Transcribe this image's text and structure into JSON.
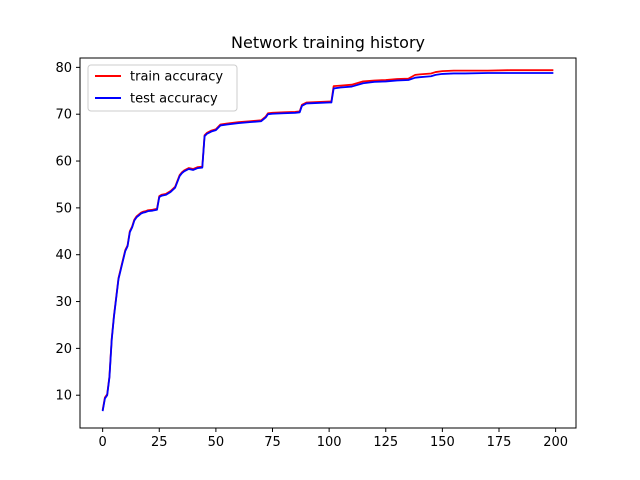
{
  "chart_data": {
    "type": "line",
    "title": "Network training history",
    "xlabel": "",
    "ylabel": "",
    "xlim": [
      -10,
      209
    ],
    "ylim": [
      3,
      82
    ],
    "xticks": [
      0,
      25,
      50,
      75,
      100,
      125,
      150,
      175,
      200
    ],
    "yticks": [
      10,
      20,
      30,
      40,
      50,
      60,
      70,
      80
    ],
    "grid": false,
    "legend_position": "top-left",
    "series": [
      {
        "name": "train accuracy",
        "color": "#ff0000",
        "x": [
          0,
          1,
          2,
          3,
          4,
          5,
          6,
          7,
          8,
          9,
          10,
          11,
          12,
          13,
          14,
          15,
          16,
          17,
          18,
          19,
          20,
          22,
          24,
          25,
          26,
          28,
          30,
          32,
          34,
          35,
          36,
          38,
          40,
          42,
          44,
          45,
          46,
          48,
          50,
          52,
          55,
          60,
          65,
          70,
          72,
          73,
          75,
          80,
          85,
          87,
          88,
          90,
          95,
          100,
          101,
          102,
          105,
          110,
          115,
          120,
          125,
          130,
          135,
          138,
          140,
          145,
          147,
          150,
          155,
          160,
          170,
          180,
          190,
          199
        ],
        "values": [
          6.8,
          9.5,
          10.2,
          14,
          22,
          27,
          31,
          35,
          37,
          39,
          41,
          42,
          45,
          46,
          47.5,
          48.2,
          48.6,
          49,
          49.2,
          49.3,
          49.5,
          49.6,
          49.8,
          52.5,
          52.8,
          53,
          53.6,
          54.5,
          57,
          57.6,
          58,
          58.5,
          58.3,
          58.7,
          58.8,
          65.5,
          66,
          66.5,
          66.8,
          67.8,
          68,
          68.3,
          68.5,
          68.7,
          69.5,
          70.2,
          70.3,
          70.4,
          70.5,
          70.6,
          72,
          72.5,
          72.6,
          72.7,
          72.7,
          76,
          76.1,
          76.3,
          77,
          77.2,
          77.3,
          77.5,
          77.6,
          78.4,
          78.5,
          78.7,
          79,
          79.2,
          79.3,
          79.3,
          79.3,
          79.4,
          79.4,
          79.4
        ]
      },
      {
        "name": "test accuracy",
        "color": "#0000ff",
        "x": [
          0,
          1,
          2,
          3,
          4,
          5,
          6,
          7,
          8,
          9,
          10,
          11,
          12,
          13,
          14,
          15,
          16,
          17,
          18,
          19,
          20,
          22,
          24,
          25,
          26,
          28,
          30,
          32,
          34,
          35,
          36,
          38,
          40,
          42,
          44,
          45,
          46,
          48,
          50,
          52,
          55,
          60,
          65,
          70,
          72,
          73,
          75,
          80,
          85,
          87,
          88,
          90,
          95,
          100,
          101,
          102,
          105,
          110,
          115,
          120,
          125,
          130,
          135,
          138,
          140,
          145,
          147,
          150,
          155,
          160,
          170,
          180,
          190,
          199
        ],
        "values": [
          6.6,
          9.3,
          10,
          13.8,
          21.8,
          26.8,
          30.8,
          34.8,
          36.8,
          38.8,
          40.8,
          41.8,
          44.8,
          45.8,
          47.3,
          48,
          48.4,
          48.8,
          49,
          49.1,
          49.3,
          49.4,
          49.6,
          52.3,
          52.6,
          52.8,
          53.4,
          54.3,
          56.8,
          57.4,
          57.8,
          58.3,
          58.1,
          58.5,
          58.6,
          65.3,
          65.8,
          66.3,
          66.6,
          67.6,
          67.8,
          68.1,
          68.3,
          68.5,
          69.3,
          70,
          70.1,
          70.2,
          70.3,
          70.4,
          71.8,
          72.3,
          72.4,
          72.5,
          72.5,
          75.5,
          75.7,
          75.9,
          76.6,
          76.9,
          77,
          77.2,
          77.3,
          77.8,
          77.9,
          78.1,
          78.4,
          78.6,
          78.7,
          78.7,
          78.8,
          78.8,
          78.8,
          78.8
        ]
      }
    ]
  }
}
